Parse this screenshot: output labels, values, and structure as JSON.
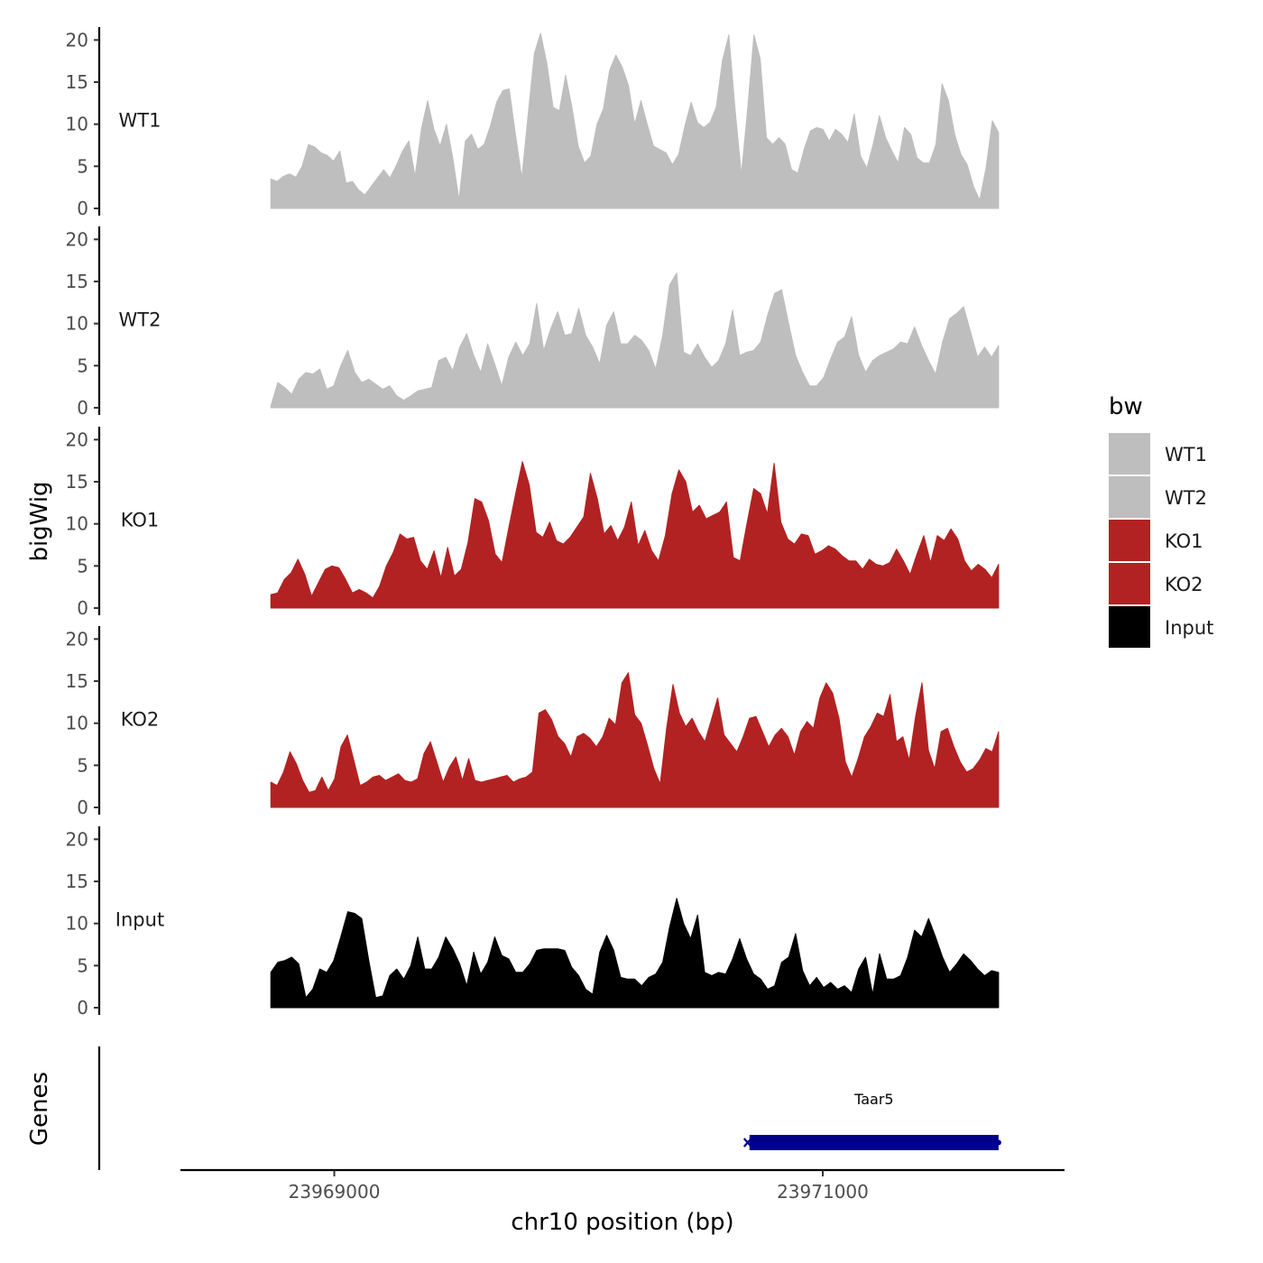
{
  "chart_data": {
    "type": "area",
    "title": "",
    "ylabel": "bigWig",
    "xlabel": "chr10 position (bp)",
    "genes_label": "Genes",
    "ylim": [
      0,
      21
    ],
    "yticks": [
      0,
      5,
      10,
      15,
      20
    ],
    "xlim": [
      23968370,
      23971990
    ],
    "xticks": [
      23969000,
      23971000
    ],
    "xtick_labels": [
      "23969000",
      "23971000"
    ],
    "x_start": 23968740,
    "x_end": 23971720,
    "legend": {
      "title": "bw",
      "position": "right",
      "entries": [
        {
          "label": "WT1",
          "color": "#bebebe"
        },
        {
          "label": "WT2",
          "color": "#bebebe"
        },
        {
          "label": "KO1",
          "color": "#b22222"
        },
        {
          "label": "KO2",
          "color": "#b22222"
        },
        {
          "label": "Input",
          "color": "#000000"
        }
      ]
    },
    "series": [
      {
        "name": "WT1",
        "color": "#bebebe",
        "values": [
          3.5,
          3.2,
          3.8,
          4.1,
          3.7,
          5.0,
          7.6,
          7.3,
          6.6,
          6.3,
          5.6,
          6.8,
          3.0,
          3.2,
          2.2,
          1.6,
          2.6,
          3.6,
          4.6,
          3.6,
          5.1,
          6.8,
          8.0,
          3.8,
          9.4,
          12.8,
          9.4,
          7.4,
          10.0,
          6.0,
          1.0,
          8.0,
          8.8,
          7.0,
          7.6,
          9.8,
          12.6,
          14.0,
          14.2,
          8.8,
          3.6,
          11.0,
          18.4,
          20.8,
          17.2,
          12.0,
          11.6,
          15.8,
          12.0,
          7.4,
          5.4,
          6.2,
          10.0,
          11.8,
          16.4,
          18.2,
          16.8,
          14.6,
          10.0,
          12.8,
          10.0,
          7.4,
          7.0,
          6.6,
          5.2,
          6.4,
          9.8,
          12.6,
          10.2,
          9.6,
          10.2,
          12.0,
          17.6,
          20.6,
          11.8,
          4.0,
          11.8,
          20.6,
          17.8,
          8.4,
          7.6,
          8.4,
          7.6,
          4.6,
          4.2,
          7.0,
          9.2,
          9.6,
          9.4,
          8.0,
          9.4,
          8.8,
          7.8,
          11.2,
          6.2,
          4.8,
          7.6,
          11.0,
          8.4,
          6.8,
          5.4,
          9.6,
          8.8,
          6.0,
          5.4,
          5.4,
          7.6,
          14.8,
          12.8,
          8.8,
          6.4,
          5.2,
          2.6,
          1.0,
          4.8,
          10.4,
          9.0
        ]
      },
      {
        "name": "WT2",
        "color": "#bebebe",
        "values": [
          0.2,
          3.0,
          2.4,
          1.6,
          3.4,
          4.2,
          4.0,
          4.6,
          2.2,
          2.6,
          5.0,
          6.8,
          4.2,
          3.0,
          3.4,
          2.8,
          2.2,
          2.6,
          1.4,
          0.9,
          1.4,
          2.0,
          2.2,
          2.4,
          5.6,
          6.0,
          4.4,
          7.2,
          8.8,
          6.2,
          4.2,
          7.6,
          5.2,
          2.6,
          6.0,
          7.8,
          6.2,
          7.6,
          12.4,
          6.8,
          9.4,
          11.4,
          8.6,
          8.8,
          11.8,
          8.6,
          7.2,
          5.2,
          9.8,
          11.4,
          7.6,
          7.6,
          8.6,
          8.0,
          6.8,
          4.6,
          8.6,
          14.6,
          16.0,
          6.6,
          6.2,
          7.6,
          6.0,
          4.8,
          5.6,
          7.6,
          11.6,
          6.2,
          6.6,
          6.8,
          7.8,
          11.0,
          13.6,
          14.0,
          10.0,
          6.2,
          4.2,
          2.6,
          2.6,
          3.6,
          5.8,
          7.8,
          8.4,
          10.8,
          6.2,
          4.2,
          5.6,
          6.2,
          6.6,
          7.0,
          7.8,
          7.6,
          9.6,
          7.4,
          5.6,
          4.0,
          7.8,
          10.6,
          11.2,
          12.0,
          9.0,
          6.0,
          7.2,
          6.0,
          7.4
        ]
      },
      {
        "name": "KO1",
        "color": "#b22222",
        "values": [
          1.6,
          1.8,
          3.4,
          4.2,
          5.8,
          4.0,
          1.4,
          3.0,
          4.6,
          5.0,
          4.8,
          3.4,
          1.8,
          2.2,
          1.8,
          1.2,
          2.6,
          5.0,
          6.6,
          8.8,
          8.2,
          8.4,
          5.6,
          4.6,
          6.8,
          3.6,
          7.2,
          3.8,
          4.6,
          7.8,
          13.0,
          12.6,
          10.4,
          6.4,
          5.4,
          9.6,
          13.6,
          17.4,
          14.6,
          9.0,
          8.4,
          10.2,
          8.0,
          7.6,
          8.4,
          9.6,
          10.8,
          16.0,
          13.0,
          8.8,
          9.8,
          8.0,
          9.6,
          12.6,
          7.4,
          9.2,
          6.8,
          5.6,
          8.6,
          13.6,
          16.4,
          15.0,
          11.4,
          12.2,
          10.6,
          11.0,
          11.4,
          12.6,
          6.0,
          5.6,
          10.0,
          14.2,
          13.6,
          11.2,
          17.2,
          10.2,
          8.2,
          7.6,
          8.8,
          8.6,
          6.4,
          6.8,
          7.4,
          7.0,
          6.2,
          5.6,
          5.6,
          4.6,
          5.8,
          5.2,
          5.0,
          5.4,
          7.0,
          5.6,
          4.0,
          6.4,
          8.6,
          5.4,
          8.6,
          8.0,
          9.4,
          8.2,
          5.6,
          4.4,
          5.2,
          4.6,
          3.6,
          5.2
        ]
      },
      {
        "name": "KO2",
        "color": "#b22222",
        "values": [
          3.0,
          2.6,
          4.2,
          6.6,
          5.2,
          3.2,
          1.8,
          2.0,
          3.6,
          2.0,
          3.4,
          7.2,
          8.6,
          5.6,
          2.6,
          3.0,
          3.6,
          3.8,
          3.2,
          3.6,
          4.0,
          3.2,
          3.0,
          3.4,
          6.4,
          7.8,
          5.4,
          3.0,
          4.8,
          6.0,
          3.2,
          5.8,
          3.2,
          3.0,
          3.2,
          3.4,
          3.6,
          3.8,
          3.0,
          3.4,
          3.6,
          4.2,
          11.2,
          11.6,
          10.4,
          8.4,
          7.6,
          6.0,
          8.4,
          8.8,
          8.2,
          7.2,
          8.4,
          10.6,
          9.8,
          14.8,
          16.0,
          11.0,
          10.0,
          7.4,
          4.6,
          2.8,
          9.4,
          14.6,
          11.2,
          9.6,
          10.6,
          9.0,
          7.8,
          10.4,
          13.0,
          8.6,
          7.6,
          6.6,
          8.4,
          10.6,
          10.8,
          9.0,
          7.2,
          8.6,
          9.4,
          8.4,
          6.2,
          9.0,
          10.2,
          9.4,
          13.0,
          14.8,
          13.6,
          10.6,
          5.4,
          3.6,
          5.8,
          8.4,
          9.6,
          11.2,
          10.8,
          13.4,
          7.8,
          8.4,
          5.6,
          10.8,
          14.8,
          6.8,
          4.6,
          9.0,
          9.4,
          7.2,
          5.4,
          4.2,
          4.6,
          5.6,
          7.0,
          6.6,
          9.0
        ]
      },
      {
        "name": "Input",
        "color": "#000000",
        "values": [
          4.2,
          5.4,
          5.6,
          6.0,
          5.2,
          1.2,
          2.2,
          4.6,
          4.2,
          5.6,
          8.4,
          11.4,
          11.2,
          10.6,
          5.6,
          1.2,
          1.4,
          3.8,
          4.6,
          3.4,
          5.0,
          8.4,
          4.6,
          4.6,
          6.0,
          8.4,
          7.0,
          5.2,
          2.6,
          6.6,
          4.0,
          5.4,
          8.4,
          6.2,
          5.8,
          4.2,
          4.2,
          5.2,
          6.8,
          7.0,
          7.0,
          7.0,
          6.8,
          4.8,
          3.8,
          2.2,
          1.6,
          6.6,
          8.6,
          6.8,
          3.6,
          3.4,
          3.4,
          2.6,
          3.6,
          4.0,
          5.4,
          9.6,
          13.0,
          10.0,
          8.2,
          11.0,
          4.2,
          3.8,
          4.2,
          4.0,
          5.8,
          8.2,
          5.8,
          4.0,
          3.4,
          2.2,
          2.6,
          5.4,
          6.0,
          8.8,
          4.4,
          2.6,
          3.6,
          2.4,
          3.0,
          2.2,
          2.6,
          1.8,
          4.6,
          6.0,
          1.6,
          6.4,
          3.4,
          3.4,
          3.8,
          6.0,
          9.2,
          8.4,
          10.6,
          8.4,
          6.0,
          4.2,
          5.2,
          6.4,
          5.6,
          4.6,
          3.8,
          4.4,
          4.2
        ]
      }
    ],
    "genes": [
      {
        "name": "Taar5",
        "start": 23970700,
        "end": 23971720,
        "strand": "-",
        "color": "#00008b"
      }
    ]
  }
}
